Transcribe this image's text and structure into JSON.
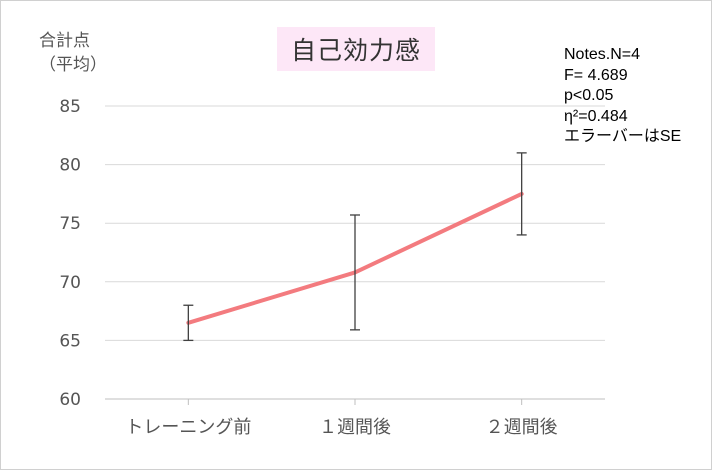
{
  "chart_data": {
    "type": "line",
    "title": "自己効力感",
    "ylabel_line1": "合計点",
    "ylabel_line2": "（平均）",
    "xlabel": "",
    "categories": [
      "トレーニング前",
      "１週間後",
      "２週間後"
    ],
    "series": [
      {
        "values": [
          66.5,
          70.8,
          77.5
        ],
        "error": [
          1.5,
          4.9,
          3.5
        ],
        "color": "#f37b7f"
      }
    ],
    "ylim": [
      60,
      85
    ],
    "yticks": [
      60,
      65,
      70,
      75,
      80,
      85
    ],
    "grid": true,
    "notes": [
      "Notes.N=4",
      "F= 4.689",
      "p<0.05",
      "η²=0.484",
      "エラーバーはSE"
    ]
  },
  "colors": {
    "line": "#f37b7f",
    "grid": "#d9d9d9",
    "title_bg": "#fde7f7",
    "errorbar": "#404040"
  }
}
